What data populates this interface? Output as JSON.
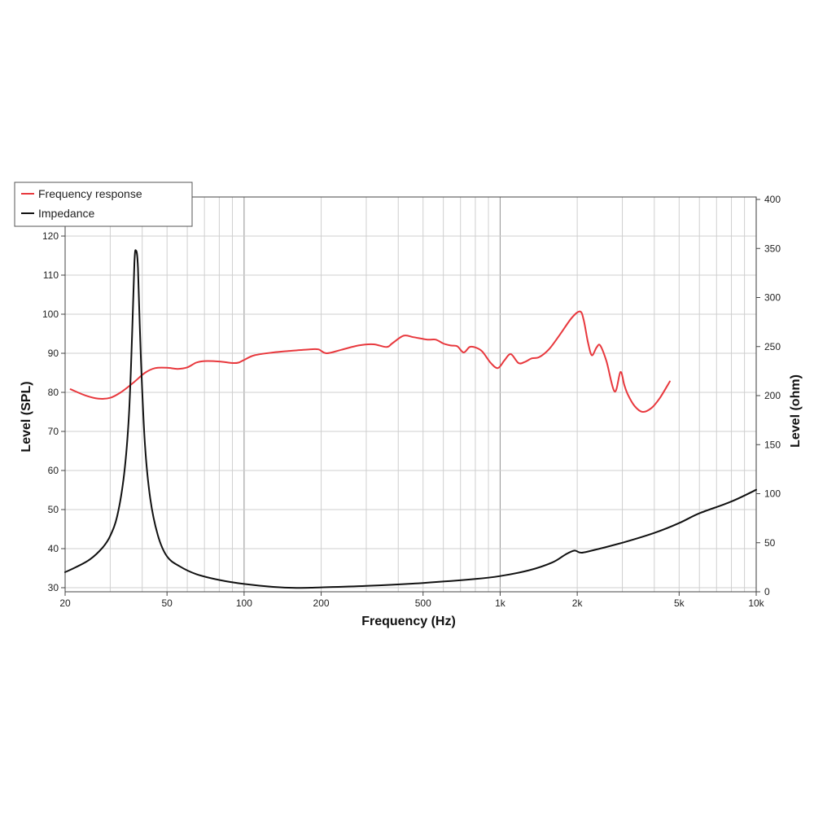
{
  "chart_data": {
    "type": "line",
    "xlabel": "Frequency (Hz)",
    "ylabel": "Level (SPL)",
    "y2label": "Level (ohm)",
    "x_scale": "log",
    "xlim": [
      20,
      10000
    ],
    "ylim": [
      30,
      120
    ],
    "y2lim": [
      0,
      400
    ],
    "grid": true,
    "legend_position": "top-left",
    "x_ticks": [
      {
        "v": 20,
        "label": "20"
      },
      {
        "v": 50,
        "label": "50"
      },
      {
        "v": 100,
        "label": "100"
      },
      {
        "v": 200,
        "label": "200"
      },
      {
        "v": 500,
        "label": "500"
      },
      {
        "v": 1000,
        "label": "1k"
      },
      {
        "v": 2000,
        "label": "2k"
      },
      {
        "v": 5000,
        "label": "5k"
      },
      {
        "v": 10000,
        "label": "10k"
      }
    ],
    "y_ticks": [
      30,
      40,
      50,
      60,
      70,
      80,
      90,
      100,
      110,
      120
    ],
    "y2_ticks": [
      0,
      50,
      100,
      150,
      200,
      250,
      300,
      350,
      400
    ],
    "series": [
      {
        "name": "Frequency response",
        "color": "#e8383d",
        "axis": "left",
        "x": [
          21,
          24,
          27,
          30,
          33,
          37,
          41,
          45,
          50,
          55,
          60,
          65,
          70,
          80,
          90,
          95,
          100,
          110,
          130,
          150,
          180,
          195,
          210,
          240,
          280,
          320,
          360,
          380,
          420,
          460,
          520,
          560,
          600,
          640,
          680,
          720,
          760,
          800,
          850,
          920,
          980,
          1040,
          1100,
          1180,
          1250,
          1330,
          1420,
          1550,
          1700,
          1900,
          2050,
          2120,
          2200,
          2280,
          2380,
          2460,
          2600,
          2800,
          2950,
          3050,
          3150,
          3350,
          3600,
          3900,
          4200,
          4600
        ],
        "y": [
          80.8,
          79.2,
          78.4,
          78.6,
          80.0,
          82.5,
          85.0,
          86.2,
          86.3,
          86.0,
          86.4,
          87.6,
          88.0,
          87.9,
          87.5,
          87.6,
          88.3,
          89.5,
          90.2,
          90.6,
          91.0,
          91.0,
          90.0,
          90.9,
          92.0,
          92.3,
          91.6,
          92.6,
          94.5,
          94.1,
          93.5,
          93.5,
          92.5,
          92.0,
          91.8,
          90.2,
          91.6,
          91.5,
          90.5,
          87.5,
          86.2,
          88.2,
          89.8,
          87.5,
          87.8,
          88.7,
          89.0,
          91.0,
          94.5,
          99.0,
          100.7,
          98.5,
          93.0,
          89.5,
          91.5,
          92.0,
          88.0,
          80.2,
          85.2,
          82.0,
          79.5,
          76.5,
          75.0,
          76.0,
          78.5,
          82.8
        ]
      },
      {
        "name": "Impedance",
        "color": "#111111",
        "axis": "right",
        "x": [
          20,
          22,
          25,
          28,
          30,
          32,
          34,
          35.5,
          36.5,
          37.3,
          37.8,
          38.5,
          39.5,
          41,
          43,
          46,
          50,
          56,
          65,
          80,
          100,
          130,
          160,
          200,
          300,
          500,
          800,
          1000,
          1300,
          1600,
          1800,
          1950,
          2050,
          2200,
          3000,
          4000,
          5000,
          6000,
          8000,
          10000
        ],
        "y": [
          20,
          25,
          33,
          45,
          57,
          78,
          120,
          180,
          260,
          335,
          348,
          330,
          240,
          150,
          95,
          58,
          36,
          26,
          18,
          12,
          8,
          5,
          4,
          4.5,
          6,
          9,
          13,
          16,
          22,
          30,
          38,
          42,
          40,
          41,
          50,
          60,
          70,
          80,
          92,
          104
        ]
      }
    ]
  }
}
